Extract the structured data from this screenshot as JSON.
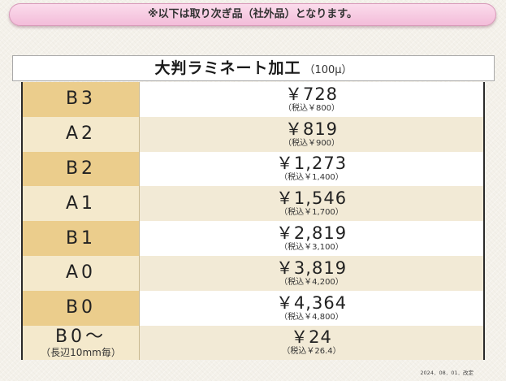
{
  "notice": "※以下は取り次ぎ品（社外品）となります。",
  "title": {
    "main": "大判ラミネート加工",
    "sub": "（100μ）"
  },
  "rows": [
    {
      "size": "B3",
      "price": "￥728",
      "tax": "（税込￥800）"
    },
    {
      "size": "A2",
      "price": "￥819",
      "tax": "（税込￥900）"
    },
    {
      "size": "B2",
      "price": "￥1,273",
      "tax": "（税込￥1,400）"
    },
    {
      "size": "A1",
      "price": "￥1,546",
      "tax": "（税込￥1,700）"
    },
    {
      "size": "B1",
      "price": "￥2,819",
      "tax": "（税込￥3,100）"
    },
    {
      "size": "A0",
      "price": "￥3,819",
      "tax": "（税込￥4,200）"
    },
    {
      "size": "B0",
      "price": "￥4,364",
      "tax": "（税込￥4,800）"
    },
    {
      "size": "B0～",
      "note": "（長辺10mm毎）",
      "price": "￥24",
      "tax": "（税込￥26.4）"
    }
  ],
  "revision": "2024．08．01．改定",
  "colors": {
    "notice_bg": "#f3bcd9",
    "size_dark": "#ebcd8c",
    "size_light": "#f4e9cc",
    "price_light": "#ffffff",
    "price_tint": "#f2ead6",
    "page_bg": "#f4f1ea"
  }
}
